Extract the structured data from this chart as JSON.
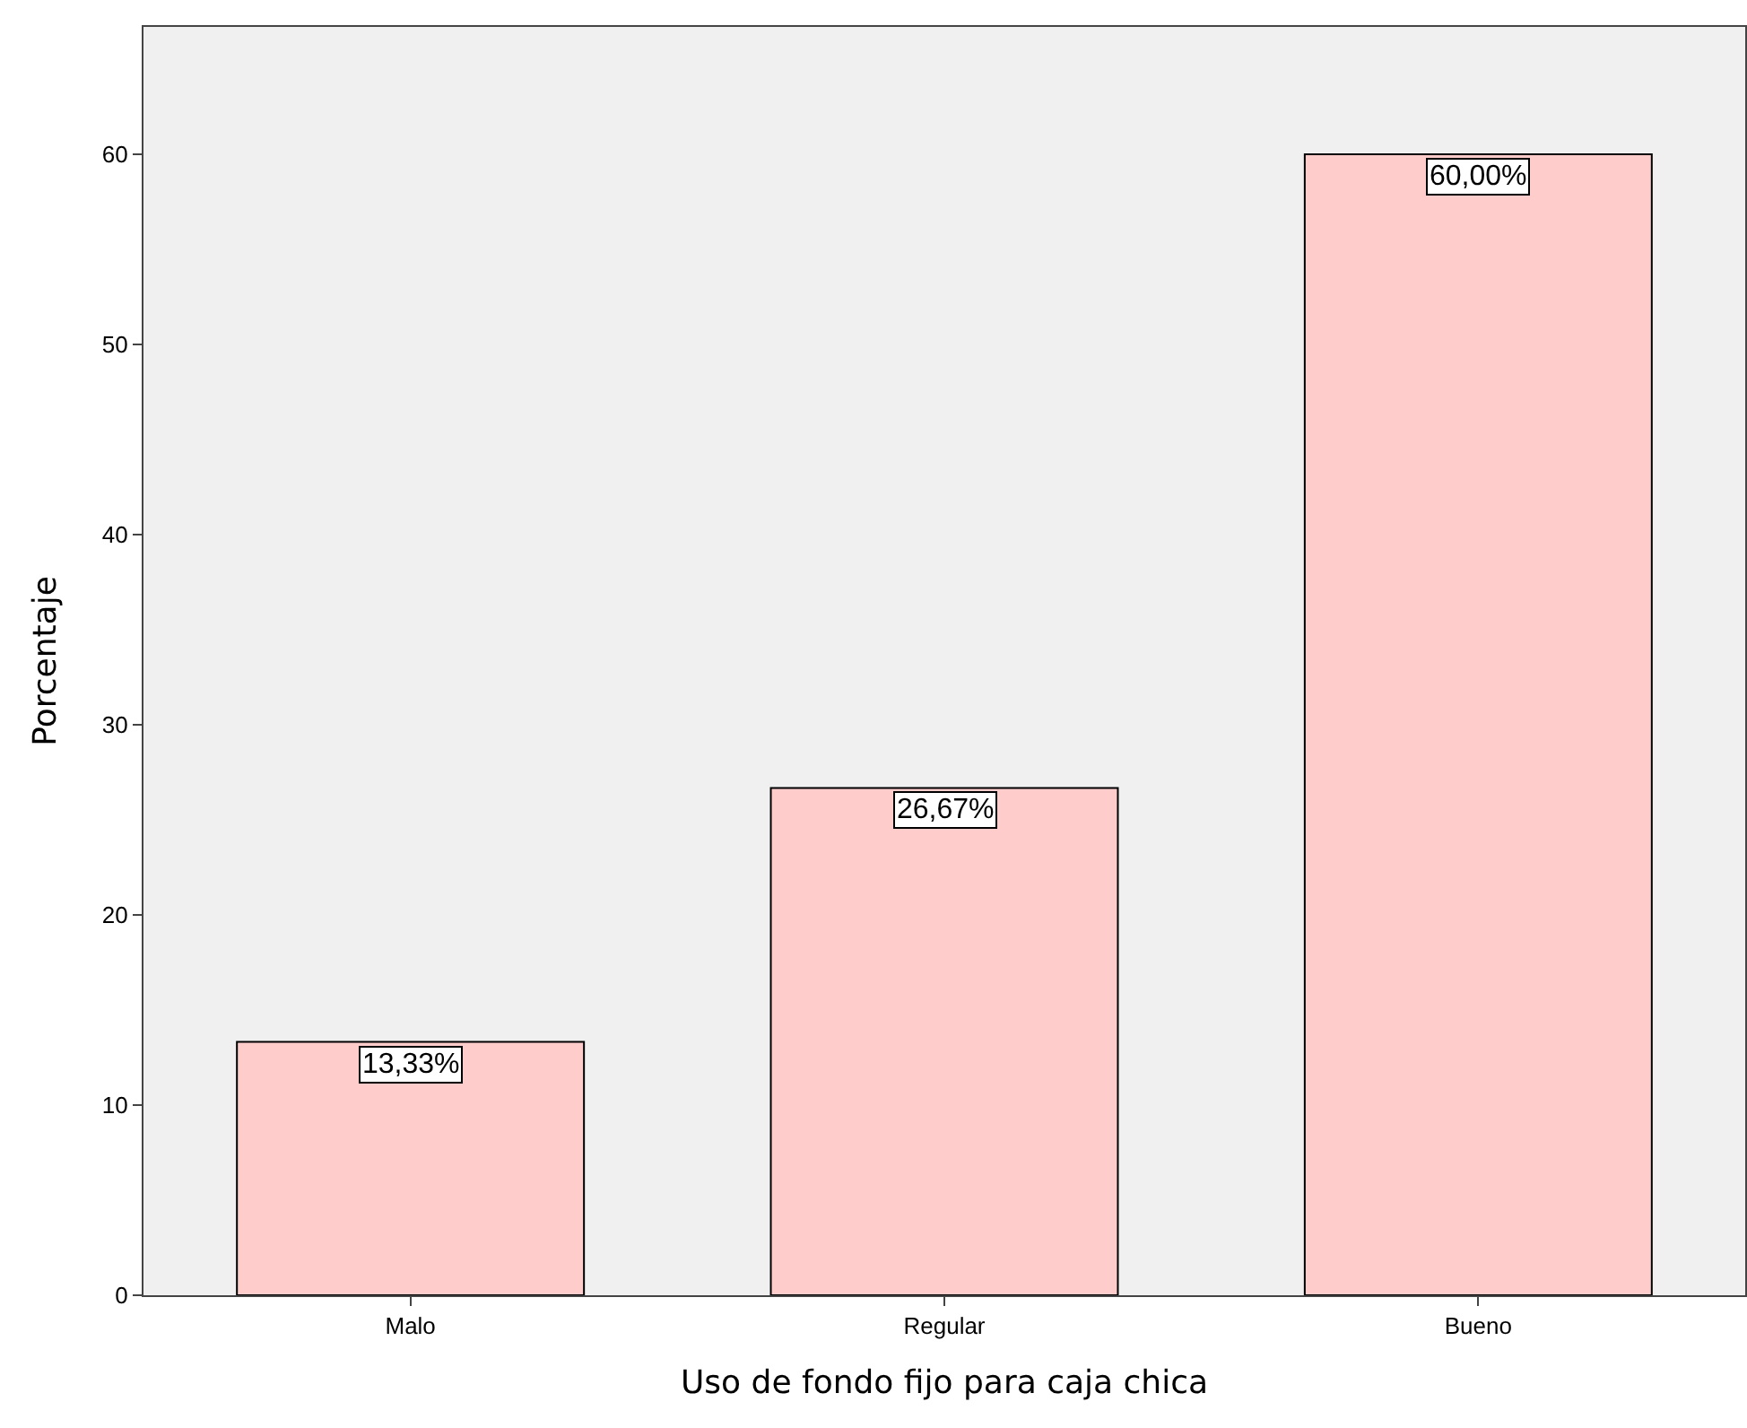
{
  "chart_data": {
    "type": "bar",
    "xlabel": "Uso de fondo fijo para caja chica",
    "ylabel": "Porcentaje",
    "categories": [
      "Malo",
      "Regular",
      "Bueno"
    ],
    "values": [
      13.33,
      26.67,
      60.0
    ],
    "value_labels": [
      "13,33%",
      "26,67%",
      "60,00%"
    ],
    "color": "#ffcccc",
    "ylim": [
      0,
      66.7
    ],
    "yticks": [
      0,
      10,
      20,
      30,
      40,
      50,
      60
    ],
    "grid": false,
    "legend": false
  }
}
